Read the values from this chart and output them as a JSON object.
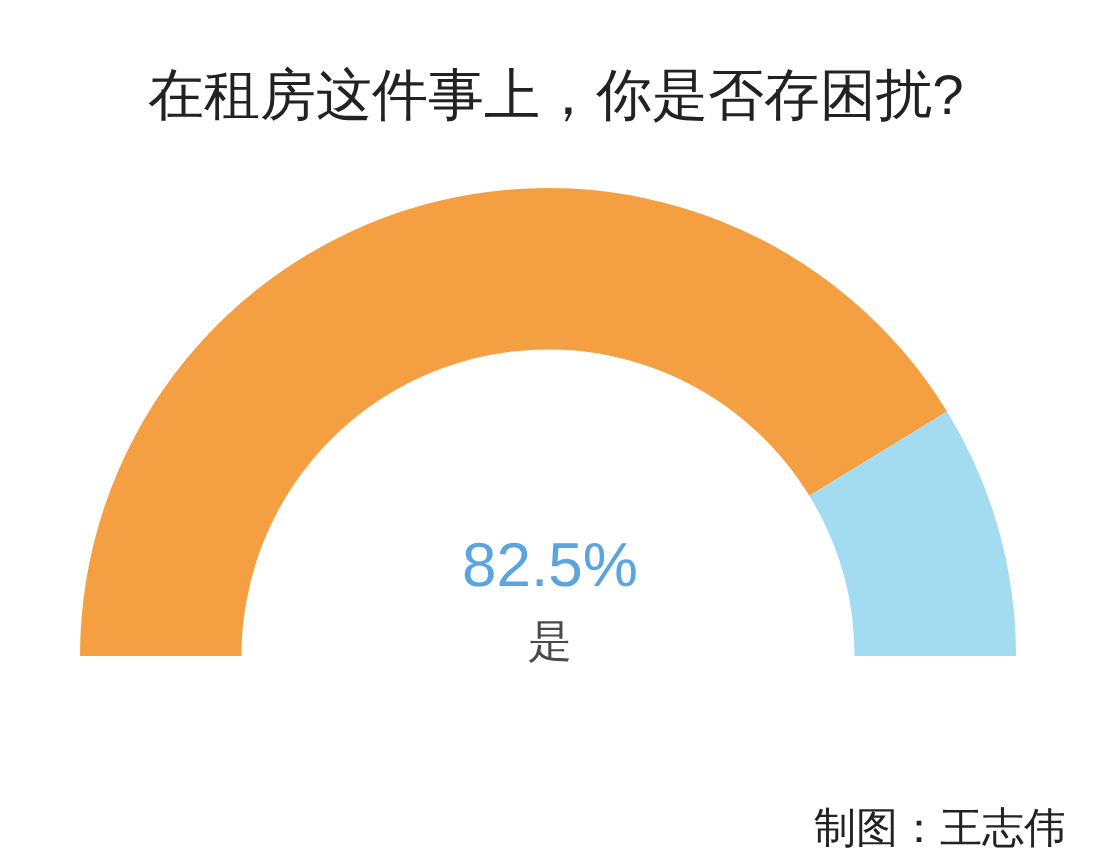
{
  "chart_data": {
    "type": "donut",
    "title": "在租房这件事上，你是否存困扰?",
    "categories": [
      "是",
      null
    ],
    "values": [
      82.5,
      17.5
    ],
    "colors": [
      "#f4a042",
      "#a3dcf0"
    ],
    "value_labels": [
      "82.5%",
      null
    ],
    "annotations": [
      "制图：王志伟"
    ]
  }
}
